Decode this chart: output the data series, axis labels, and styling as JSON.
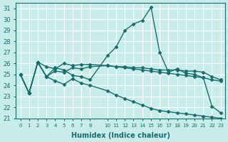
{
  "xlabel": "Humidex (Indice chaleur)",
  "bg_color": "#c8ecea",
  "grid_color": "#ffffff",
  "line_color": "#1a6b6b",
  "ylim": [
    21,
    31.5
  ],
  "xlim": [
    -0.5,
    23.5
  ],
  "yticks": [
    21,
    22,
    23,
    24,
    25,
    26,
    27,
    28,
    29,
    30,
    31
  ],
  "xticks": [
    0,
    1,
    2,
    3,
    4,
    5,
    6,
    7,
    8,
    10,
    11,
    12,
    13,
    14,
    15,
    16,
    17,
    18,
    19,
    20,
    21,
    22,
    23
  ],
  "lines": [
    {
      "x": [
        0,
        1,
        2,
        3,
        4,
        5,
        6,
        7,
        8,
        10,
        11,
        12,
        13,
        14,
        15,
        16,
        17,
        18,
        19,
        20,
        21,
        22,
        23
      ],
      "y": [
        25.0,
        23.3,
        26.1,
        24.8,
        25.6,
        25.4,
        24.9,
        24.8,
        24.5,
        26.7,
        27.5,
        29.0,
        29.6,
        29.9,
        31.1,
        27.0,
        25.2,
        25.5,
        25.1,
        25.0,
        24.7,
        22.1,
        21.5
      ]
    },
    {
      "x": [
        0,
        1,
        2,
        3,
        4,
        5,
        6,
        7,
        8,
        10,
        11,
        12,
        13,
        14,
        15,
        16,
        17,
        18,
        19,
        20,
        21,
        22,
        23
      ],
      "y": [
        25.0,
        23.3,
        26.1,
        24.8,
        25.3,
        25.2,
        25.6,
        25.5,
        25.7,
        25.8,
        25.7,
        25.6,
        25.5,
        25.4,
        25.3,
        25.2,
        25.1,
        25.0,
        24.9,
        24.8,
        24.7,
        24.5,
        24.4
      ]
    },
    {
      "x": [
        0,
        1,
        2,
        3,
        4,
        5,
        6,
        7,
        8,
        10,
        11,
        12,
        13,
        14,
        15,
        16,
        17,
        18,
        19,
        20,
        21,
        22,
        23
      ],
      "y": [
        25.0,
        23.3,
        26.1,
        25.7,
        25.5,
        26.0,
        25.8,
        25.9,
        25.9,
        25.8,
        25.7,
        25.7,
        25.6,
        25.6,
        25.5,
        25.4,
        25.4,
        25.4,
        25.3,
        25.3,
        25.2,
        24.8,
        24.5
      ]
    },
    {
      "x": [
        0,
        1,
        2,
        3,
        4,
        5,
        6,
        7,
        8,
        10,
        11,
        12,
        13,
        14,
        15,
        16,
        17,
        18,
        19,
        20,
        21,
        22,
        23
      ],
      "y": [
        25.0,
        23.3,
        26.1,
        24.8,
        24.4,
        24.1,
        24.6,
        24.2,
        24.0,
        23.5,
        23.1,
        22.8,
        22.5,
        22.2,
        21.9,
        21.7,
        21.6,
        21.5,
        21.4,
        21.3,
        21.2,
        21.1,
        21.0
      ]
    }
  ]
}
